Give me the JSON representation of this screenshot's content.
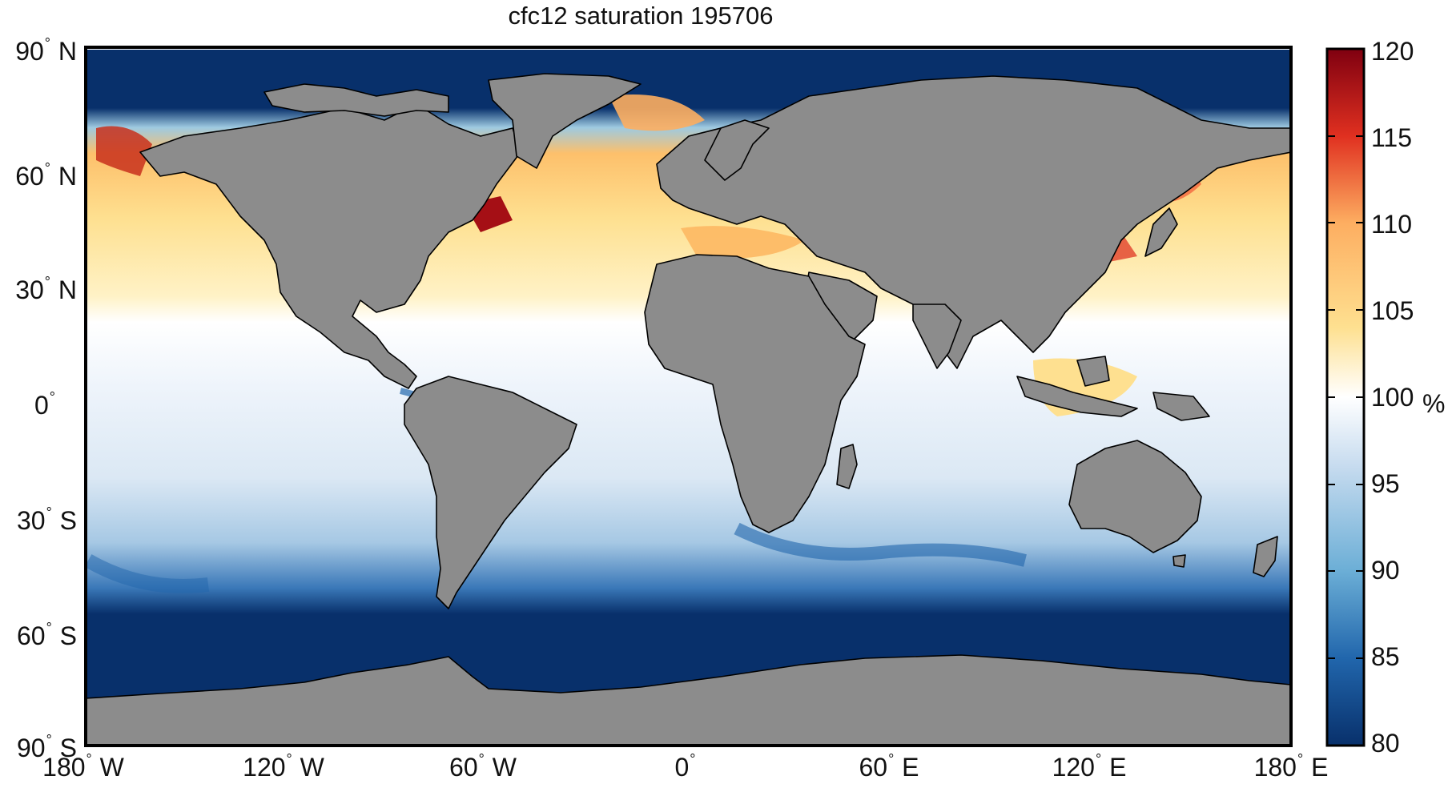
{
  "title": "cfc12 saturation 195706",
  "y_ticks": [
    {
      "deg": "90",
      "hemi": "N"
    },
    {
      "deg": "60",
      "hemi": "N"
    },
    {
      "deg": "30",
      "hemi": "N"
    },
    {
      "deg": "0",
      "hemi": ""
    },
    {
      "deg": "30",
      "hemi": "S"
    },
    {
      "deg": "60",
      "hemi": "S"
    },
    {
      "deg": "90",
      "hemi": "S"
    }
  ],
  "x_ticks": [
    {
      "deg": "180",
      "hemi": "W"
    },
    {
      "deg": "120",
      "hemi": "W"
    },
    {
      "deg": "60",
      "hemi": "W"
    },
    {
      "deg": "0",
      "hemi": ""
    },
    {
      "deg": "60",
      "hemi": "E"
    },
    {
      "deg": "120",
      "hemi": "E"
    },
    {
      "deg": "180",
      "hemi": "E"
    }
  ],
  "colorbar": {
    "ticks": [
      "120",
      "115",
      "110",
      "105",
      "100",
      "95",
      "90",
      "85",
      "80"
    ],
    "unit": "%",
    "min": 80,
    "max": 120,
    "colors": [
      "#08306b",
      "#2166ac",
      "#6baed6",
      "#c6dbef",
      "#ffffff",
      "#fee090",
      "#fdae61",
      "#e03020",
      "#7f0010"
    ]
  },
  "map": {
    "land_color": "#8c8c8c",
    "coast_color": "#000000",
    "lon_range": [
      -180,
      180
    ],
    "lat_range": [
      -90,
      90
    ]
  }
}
